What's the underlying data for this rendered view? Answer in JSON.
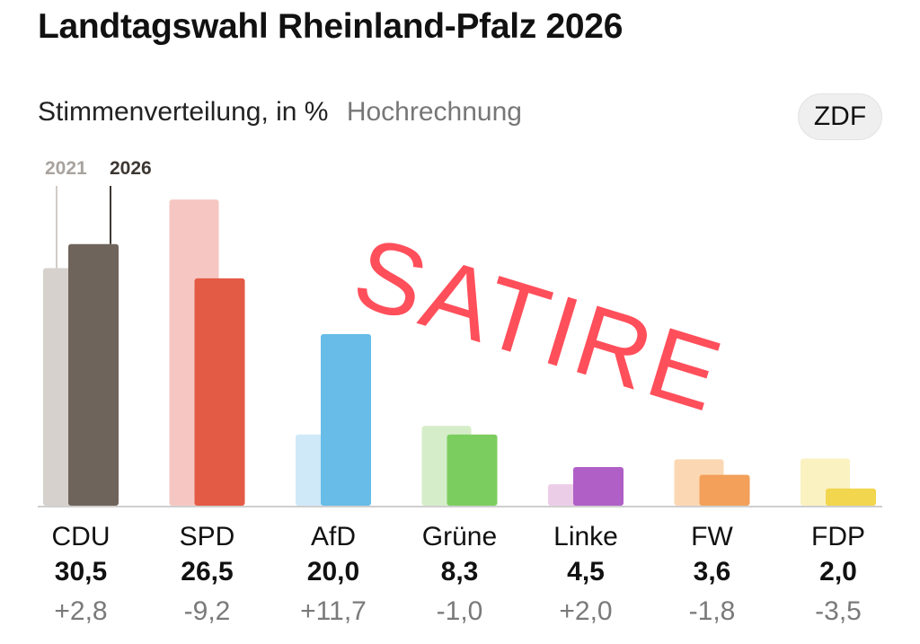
{
  "header": {
    "title": "Landtagswahl Rheinland-Pfalz 2026",
    "subtitle": "Stimmenverteilung, in %",
    "subtitle_note": "Hochrechnung",
    "badge": "ZDF"
  },
  "stamp": {
    "text": "SATIRE",
    "color": "#ff4f5b"
  },
  "chart_data": {
    "type": "bar",
    "title": "Stimmenverteilung, in %",
    "ylim": [
      0,
      40
    ],
    "grid": false,
    "legend": "top-left",
    "categories": [
      "CDU",
      "SPD",
      "AfD",
      "Grüne",
      "Linke",
      "FW",
      "FDP"
    ],
    "series": [
      {
        "name": "2021",
        "values": [
          27.7,
          35.7,
          8.3,
          9.3,
          2.5,
          5.4,
          5.5
        ],
        "colors": [
          "#d6d1cd",
          "#f6c7c2",
          "#cfe9f8",
          "#d6edc9",
          "#eccde8",
          "#fbd8b3",
          "#fbf2c2"
        ]
      },
      {
        "name": "2026",
        "values": [
          30.5,
          26.5,
          20.0,
          8.3,
          4.5,
          3.6,
          2.0
        ],
        "colors": [
          "#6f645b",
          "#e35a45",
          "#67bce8",
          "#7ccd5f",
          "#b05fc7",
          "#f2a05a",
          "#f2d64e"
        ]
      }
    ],
    "changes": [
      "+2,8",
      "-9,2",
      "+11,7",
      "-1,0",
      "+2,0",
      "-1,8",
      "-3,5"
    ],
    "value_labels": [
      "30,5",
      "26,5",
      "20,0",
      "8,3",
      "4,5",
      "3,6",
      "2,0"
    ]
  }
}
